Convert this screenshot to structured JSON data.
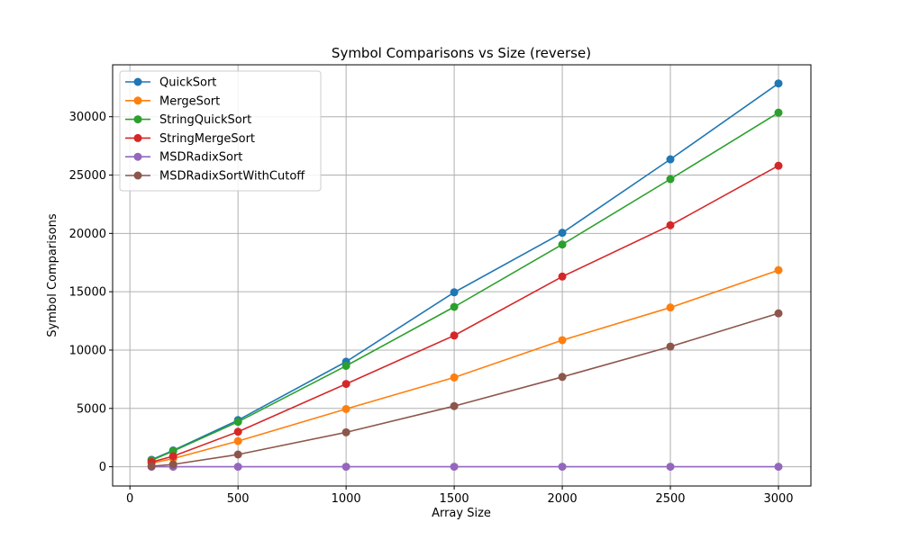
{
  "chart_data": {
    "type": "line",
    "title": "Symbol Comparisons vs Size (reverse)",
    "xlabel": "Array Size",
    "ylabel": "Symbol Comparisons",
    "x": [
      100,
      200,
      500,
      1000,
      1500,
      2000,
      2500,
      3000
    ],
    "xlim": [
      -80,
      3150
    ],
    "ylim": [
      -1650,
      34450
    ],
    "xticks": [
      0,
      500,
      1000,
      1500,
      2000,
      2500,
      3000
    ],
    "yticks": [
      0,
      5000,
      10000,
      15000,
      20000,
      25000,
      30000
    ],
    "grid": true,
    "legend_position": "top-left",
    "series": [
      {
        "name": "QuickSort",
        "color": "#1f77b4",
        "values": [
          600,
          1400,
          4000,
          9000,
          14950,
          20050,
          26350,
          32850
        ]
      },
      {
        "name": "MergeSort",
        "color": "#ff7f0e",
        "values": [
          300,
          700,
          2200,
          4950,
          7650,
          10850,
          13650,
          16850
        ]
      },
      {
        "name": "StringQuickSort",
        "color": "#2ca02c",
        "values": [
          550,
          1350,
          3850,
          8650,
          13700,
          19050,
          24650,
          30350
        ]
      },
      {
        "name": "StringMergeSort",
        "color": "#d62728",
        "values": [
          400,
          900,
          3000,
          7100,
          11250,
          16300,
          20700,
          25800
        ]
      },
      {
        "name": "MSDRadixSort",
        "color": "#9467bd",
        "values": [
          0,
          0,
          0,
          0,
          0,
          0,
          0,
          0
        ]
      },
      {
        "name": "MSDRadixSortWithCutoff",
        "color": "#8c564b",
        "values": [
          50,
          200,
          1050,
          2950,
          5200,
          7700,
          10300,
          13150
        ]
      }
    ]
  }
}
